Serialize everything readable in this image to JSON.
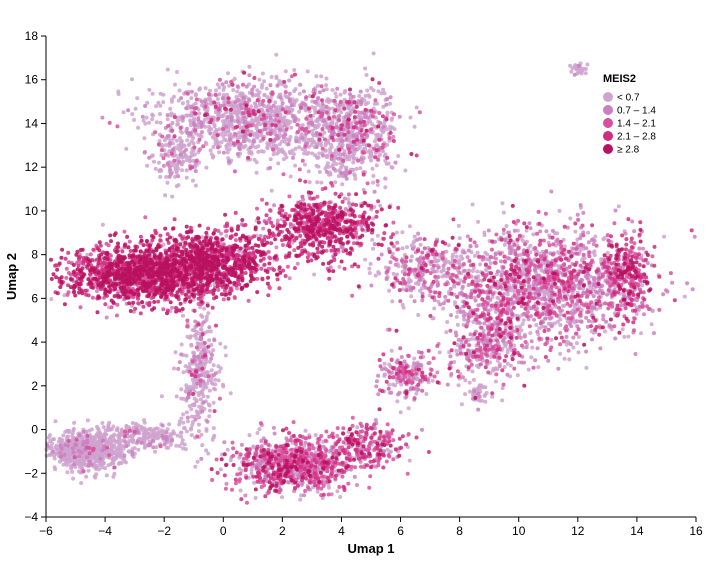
{
  "chart_data": {
    "type": "scatter",
    "title": "",
    "xlabel": "Umap 1",
    "ylabel": "Umap 2",
    "xlim": [
      -6,
      16
    ],
    "ylim": [
      -4,
      18
    ],
    "xticks": [
      "−6",
      "−4",
      "−2",
      "0",
      "2",
      "4",
      "6",
      "8",
      "10",
      "12",
      "14",
      "16"
    ],
    "yticks": [
      "−4",
      "−2",
      "0",
      "2",
      "4",
      "6",
      "8",
      "10",
      "12",
      "14",
      "16",
      "18"
    ],
    "grid": false,
    "legend": {
      "title": "MEIS2",
      "placement": "top-right",
      "bins": [
        {
          "label": "< 0.7",
          "color": "#cfa3cf"
        },
        {
          "label": "0.7 – 1.4",
          "color": "#cb7fbf"
        },
        {
          "label": "1.4 – 2.1",
          "color": "#d9509e"
        },
        {
          "label": "2.1 – 2.8",
          "color": "#d12d80"
        },
        {
          "label": "≥ 2.8",
          "color": "#b8125e"
        }
      ]
    },
    "clusters": [
      {
        "cx": -2.8,
        "cy": 7.1,
        "sx": 1.3,
        "sy": 0.65,
        "n": 1400,
        "dist": [
          0.05,
          0.07,
          0.18,
          0.3,
          0.4
        ]
      },
      {
        "cx": -0.4,
        "cy": 7.7,
        "sx": 1.1,
        "sy": 0.7,
        "n": 1000,
        "dist": [
          0.07,
          0.08,
          0.2,
          0.3,
          0.35
        ]
      },
      {
        "cx": 3.4,
        "cy": 9.3,
        "sx": 0.9,
        "sy": 0.7,
        "n": 650,
        "dist": [
          0.08,
          0.08,
          0.22,
          0.3,
          0.32
        ]
      },
      {
        "cx": 0.9,
        "cy": 14.2,
        "sx": 1.6,
        "sy": 0.9,
        "n": 1100,
        "dist": [
          0.75,
          0.13,
          0.07,
          0.04,
          0.01
        ]
      },
      {
        "cx": 4.3,
        "cy": 13.4,
        "sx": 0.8,
        "sy": 1.1,
        "n": 650,
        "dist": [
          0.72,
          0.14,
          0.08,
          0.05,
          0.01
        ]
      },
      {
        "cx": -1.5,
        "cy": 12.5,
        "sx": 0.45,
        "sy": 0.6,
        "n": 140,
        "dist": [
          0.85,
          0.1,
          0.05,
          0,
          0
        ]
      },
      {
        "cx": 10.8,
        "cy": 6.6,
        "sx": 1.6,
        "sy": 1.3,
        "n": 1600,
        "dist": [
          0.4,
          0.25,
          0.2,
          0.11,
          0.04
        ]
      },
      {
        "cx": 8.9,
        "cy": 4.0,
        "sx": 0.65,
        "sy": 0.9,
        "n": 350,
        "dist": [
          0.4,
          0.25,
          0.2,
          0.12,
          0.03
        ]
      },
      {
        "cx": 13.7,
        "cy": 7.2,
        "sx": 0.35,
        "sy": 1.0,
        "n": 250,
        "dist": [
          0.1,
          0.15,
          0.25,
          0.3,
          0.2
        ]
      },
      {
        "cx": 6.6,
        "cy": 7.4,
        "sx": 0.8,
        "sy": 0.7,
        "n": 300,
        "dist": [
          0.55,
          0.2,
          0.15,
          0.08,
          0.02
        ]
      },
      {
        "cx": -0.8,
        "cy": 2.6,
        "sx": 0.35,
        "sy": 1.4,
        "n": 320,
        "dist": [
          0.8,
          0.12,
          0.05,
          0.03,
          0
        ]
      },
      {
        "cx": -4.6,
        "cy": -0.9,
        "sx": 0.65,
        "sy": 0.45,
        "n": 700,
        "dist": [
          0.92,
          0.06,
          0.02,
          0,
          0
        ]
      },
      {
        "cx": -2.6,
        "cy": -0.3,
        "sx": 0.8,
        "sy": 0.3,
        "n": 200,
        "dist": [
          0.9,
          0.08,
          0.02,
          0,
          0
        ]
      },
      {
        "cx": 2.4,
        "cy": -1.6,
        "sx": 1.0,
        "sy": 0.6,
        "n": 900,
        "dist": [
          0.3,
          0.2,
          0.25,
          0.17,
          0.08
        ]
      },
      {
        "cx": 4.8,
        "cy": -0.7,
        "sx": 0.7,
        "sy": 0.5,
        "n": 250,
        "dist": [
          0.2,
          0.2,
          0.3,
          0.2,
          0.1
        ]
      },
      {
        "cx": 6.2,
        "cy": 2.5,
        "sx": 0.5,
        "sy": 0.5,
        "n": 200,
        "dist": [
          0.4,
          0.3,
          0.2,
          0.08,
          0.02
        ]
      },
      {
        "cx": 8.6,
        "cy": 1.6,
        "sx": 0.2,
        "sy": 0.3,
        "n": 40,
        "dist": [
          0.9,
          0.1,
          0,
          0,
          0
        ]
      },
      {
        "cx": 12.0,
        "cy": 16.5,
        "sx": 0.15,
        "sy": 0.15,
        "n": 30,
        "dist": [
          0.9,
          0.1,
          0,
          0,
          0
        ]
      }
    ]
  }
}
